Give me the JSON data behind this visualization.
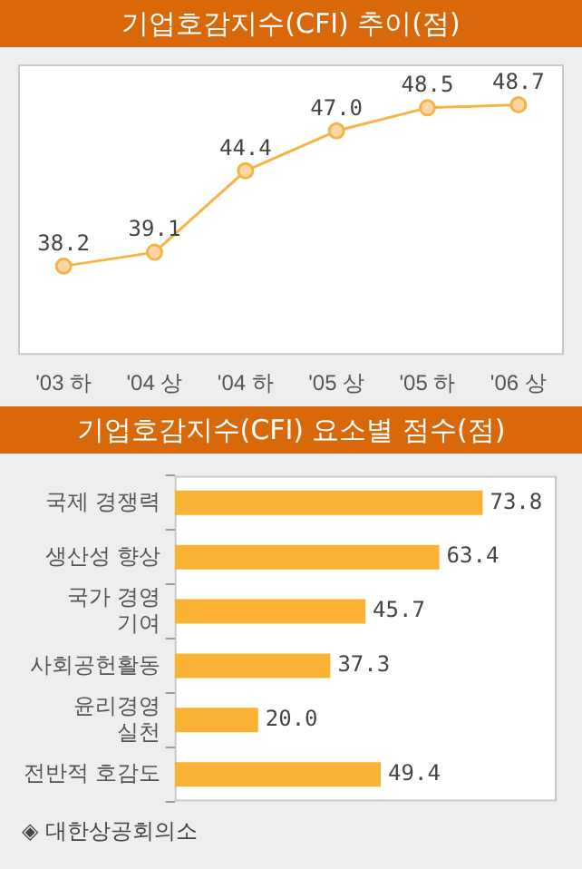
{
  "chart_data": [
    {
      "type": "line",
      "title": "기업호감지수(CFI) 추이(점)",
      "categories": [
        "'03 하",
        "'04 상",
        "'04 하",
        "'05 상",
        "'05 하",
        "'06 상"
      ],
      "values": [
        38.2,
        39.1,
        44.4,
        47.0,
        48.5,
        48.7
      ],
      "value_labels": [
        "38.2",
        "39.1",
        "44.4",
        "47.0",
        "48.5",
        "48.7"
      ],
      "color": "#f7b446",
      "marker": "circle",
      "grid": false,
      "legend": false
    },
    {
      "type": "bar",
      "orientation": "horizontal",
      "title": "기업호감지수(CFI) 요소별 점수(점)",
      "categories": [
        "국제 경쟁력",
        "생산성 향상",
        "국가 경영\n기여",
        "사회공헌활동",
        "윤리경영\n실천",
        "전반적 호감도"
      ],
      "values": [
        73.8,
        63.4,
        45.7,
        37.3,
        20.0,
        49.4
      ],
      "value_labels": [
        "73.8",
        "63.4",
        "45.7",
        "37.3",
        "20.0",
        "49.4"
      ],
      "color": "#f9b233",
      "grid": false,
      "legend": false,
      "annotations": [
        "◈ 대한상공회의소"
      ]
    }
  ]
}
